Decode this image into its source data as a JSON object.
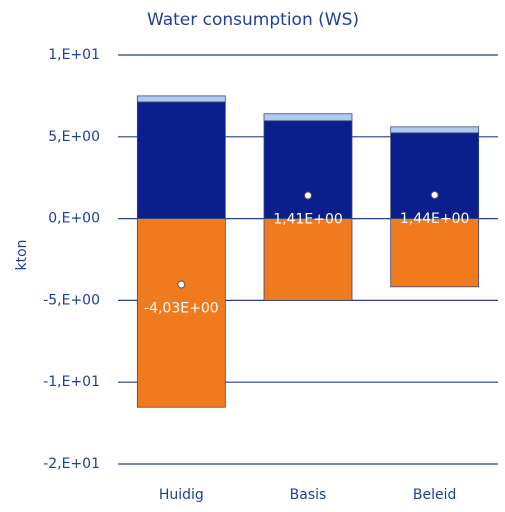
{
  "chart_data": {
    "type": "stacked_bar",
    "title": "Water consumption (WS)",
    "y_label": "kton",
    "categories": [
      "Huidig",
      "Basis",
      "Beleid"
    ],
    "series": [
      {
        "color": "#0a1f8c",
        "values": [
          7.13,
          5.98,
          5.24
        ]
      },
      {
        "color": "#aecbee",
        "values": [
          0.37,
          0.43,
          0.37
        ]
      },
      {
        "color": "#f07a1e",
        "values": [
          -11.53,
          -5.0,
          -4.17
        ]
      }
    ],
    "net": {
      "values": [
        -4.03,
        1.41,
        1.44
      ],
      "value_labels": [
        "-4,03E+00",
        "1,41E+00",
        "1,44E+00"
      ]
    },
    "ylim": [
      -15,
      10
    ],
    "yticks": [
      {
        "value": 10,
        "label": "1,E+01"
      },
      {
        "value": 5,
        "label": "5,E+00"
      },
      {
        "value": 0,
        "label": "0,E+00"
      },
      {
        "value": -5,
        "label": "-5,E+00"
      },
      {
        "value": -10,
        "label": "-1,E+01"
      },
      {
        "value": -15,
        "label": "-2,E+01"
      }
    ],
    "grid": true
  }
}
